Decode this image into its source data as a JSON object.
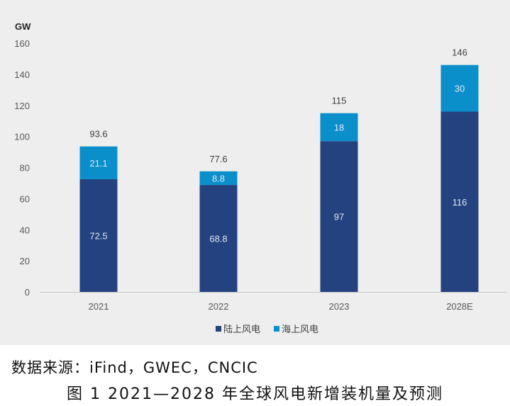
{
  "chart_data": {
    "type": "bar",
    "stacked": true,
    "unit": "GW",
    "ylim": [
      0,
      160
    ],
    "yticks": [
      0,
      20,
      40,
      60,
      80,
      100,
      120,
      140,
      160
    ],
    "categories": [
      "2021",
      "2022",
      "2023",
      "2028E"
    ],
    "series": [
      {
        "name": "陆上风电",
        "color": "#24427f",
        "values": [
          72.5,
          68.8,
          97,
          116
        ],
        "labels": [
          "72.5",
          "68.8",
          "97",
          "116"
        ]
      },
      {
        "name": "海上风电",
        "color": "#0b8fcb",
        "values": [
          21.1,
          8.8,
          18,
          30
        ],
        "labels": [
          "21.1",
          "8.8",
          "18",
          "30"
        ]
      }
    ],
    "totals": [
      "93.6",
      "77.6",
      "115",
      "146"
    ],
    "legend_position": "bottom",
    "grid": false
  },
  "source": "数据来源：iFind，GWEC，CNCIC",
  "caption": "图 1 2021—2028 年全球风电新增装机量及预测"
}
